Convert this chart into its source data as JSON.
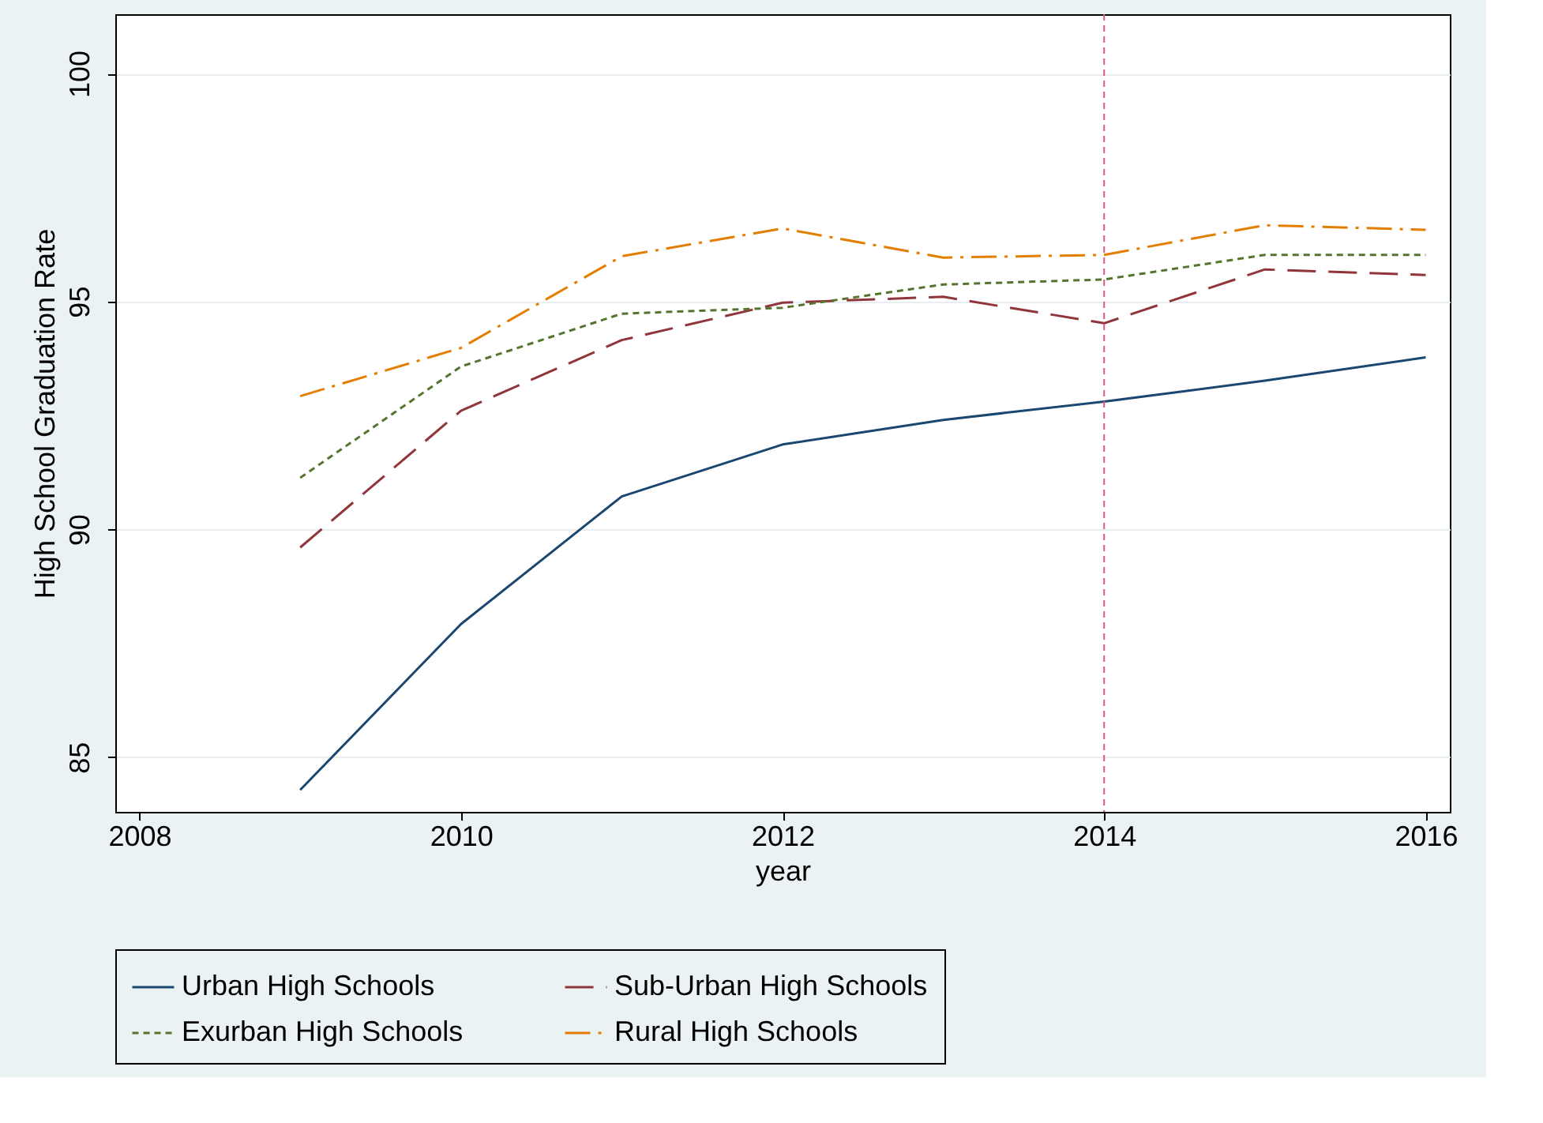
{
  "chart_data": {
    "type": "line",
    "xlabel": "year",
    "ylabel": "High School Graduation Rate",
    "x": [
      2009,
      2010,
      2011,
      2012,
      2013,
      2014,
      2015,
      2016
    ],
    "series": [
      {
        "name": "Urban High Schools",
        "color": "#1a476f",
        "line_style": "solid",
        "values": [
          84.28,
          87.92,
          90.72,
          91.86,
          92.4,
          92.8,
          93.26,
          93.77
        ]
      },
      {
        "name": "Sub-Urban High Schools",
        "color": "#90353b",
        "line_style": "dashed",
        "values": [
          89.6,
          92.6,
          94.15,
          94.97,
          95.1,
          94.52,
          95.7,
          95.58
        ]
      },
      {
        "name": "Exurban High Schools",
        "color": "#55752f",
        "line_style": "dotted",
        "values": [
          91.13,
          93.57,
          94.73,
          94.86,
          95.37,
          95.48,
          96.02,
          96.02
        ]
      },
      {
        "name": "Rural High Schools",
        "color": "#e37e00",
        "line_style": "dashdot",
        "values": [
          92.92,
          93.98,
          95.99,
          96.6,
          95.96,
          96.02,
          96.67,
          96.57
        ]
      }
    ],
    "xlim": [
      2007.85,
      2016.15
    ],
    "ylim": [
      83.8,
      101.3
    ],
    "xticks": [
      2008,
      2010,
      2012,
      2014,
      2016
    ],
    "yticks": [
      85,
      90,
      95,
      100
    ],
    "ref_lines": [
      {
        "axis": "x",
        "value": 2014,
        "label": null,
        "color": "#e0558a",
        "line_style": "dotted"
      }
    ],
    "grid": "y",
    "legend": "bottom",
    "marker": "none"
  }
}
